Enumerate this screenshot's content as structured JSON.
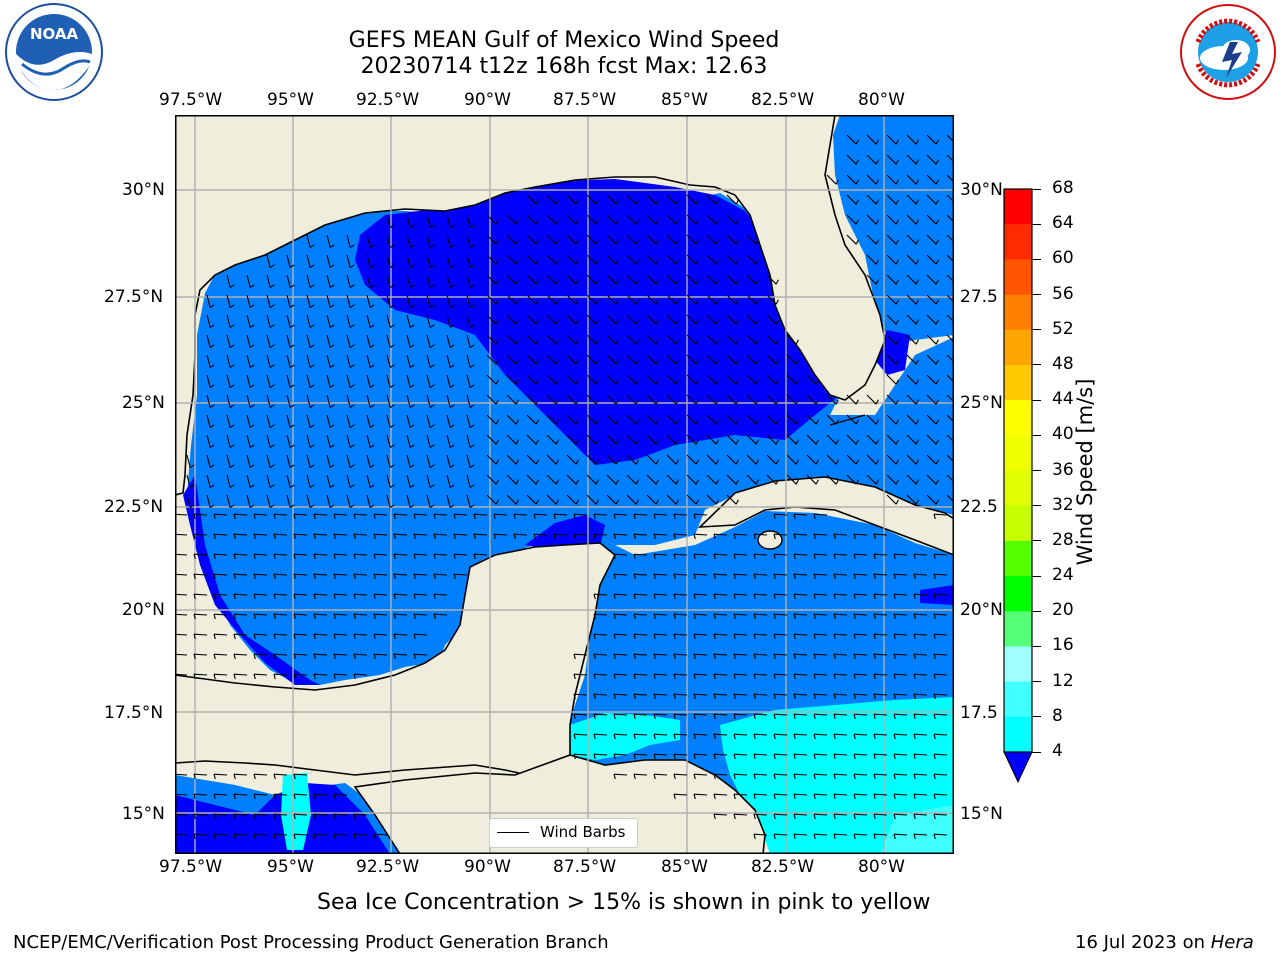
{
  "title": {
    "line1": "GEFS MEAN Gulf of Mexico Wind Speed",
    "line2": "20230714 t12z 168h fcst   Max: 12.63"
  },
  "logos": {
    "left": {
      "name": "noaa-logo",
      "text": "NOAA"
    },
    "right": {
      "name": "nws-logo",
      "text": "NATIONAL WEATHER SERVICE"
    }
  },
  "map": {
    "lon_labels": [
      "97.5°W",
      "95°W",
      "92.5°W",
      "90°W",
      "87.5°W",
      "85°W",
      "82.5°W",
      "80°W"
    ],
    "lat_labels_left": [
      "30°N",
      "27.5°N",
      "25°N",
      "22.5°N",
      "20°N",
      "17.5°N",
      "15°N"
    ],
    "lat_labels_right": [
      "30°N",
      "27.5",
      "25°N",
      "22.5",
      "20°N",
      "17.5",
      "15°N"
    ],
    "legend_label": "Wind Barbs",
    "colors": {
      "land": "#efeddc",
      "ws_4_8": "#0080ff",
      "ws_lt_4": "#0000ff",
      "ws_8_12": "#00ffff",
      "ws_12_16": "#3fffff",
      "grid": "#b0b0b0"
    }
  },
  "colorbar": {
    "label": "Wind Speed [m/s]",
    "ticks": [
      "68",
      "64",
      "60",
      "56",
      "52",
      "48",
      "44",
      "40",
      "36",
      "32",
      "28",
      "24",
      "20",
      "16",
      "12",
      "8",
      "4"
    ],
    "colors": [
      "#ff0000",
      "#ff2a00",
      "#ff5500",
      "#ff7f00",
      "#ffa500",
      "#ffc800",
      "#ffff00",
      "#f0ff00",
      "#e0ff00",
      "#c8ff00",
      "#55ff00",
      "#00ff00",
      "#55ff77",
      "#a0ffff",
      "#3fffff",
      "#00ffff",
      "#0080ff"
    ],
    "extend_color": "#0000ff"
  },
  "subnote": "Sea Ice Concentration > 15% is shown in pink to yellow",
  "footer": {
    "left": "NCEP/EMC/Verification Post Processing Product Generation Branch",
    "right_prefix": "16 Jul 2023 on ",
    "right_host": "Hera"
  }
}
